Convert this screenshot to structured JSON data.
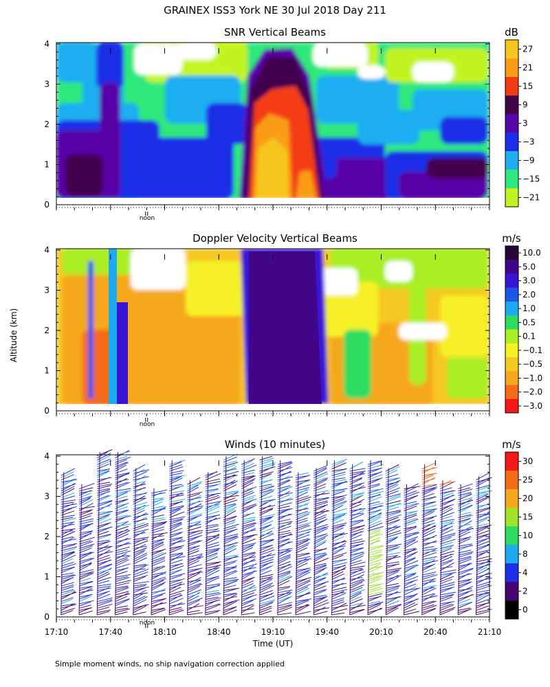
{
  "figure": {
    "title": "GRAINEX ISS3 York NE  30 Jul 2018 Day 211",
    "y_axis_label": "Altitude (km)",
    "x_axis_label": "Time (UT)",
    "footnote": "Simple moment winds, no ship navigation correction applied",
    "noon_label": "noon"
  },
  "chart_data": [
    {
      "type": "heatmap",
      "title": "SNR Vertical Beams",
      "unit": "dB",
      "xlim": [
        "17:10",
        "21:10"
      ],
      "ylim": [
        0,
        4
      ],
      "y_ticks": [
        "0",
        "1",
        "2",
        "3",
        "4"
      ],
      "noon_marker": "18:00",
      "colorbar": {
        "labels": [
          "27",
          "21",
          "15",
          "9",
          "3",
          "−3",
          "−9",
          "−15",
          "−21"
        ],
        "colors": [
          "#f7c61e",
          "#fa9d16",
          "#f43c14",
          "#43064e",
          "#5806a8",
          "#1e2ee8",
          "#1eaef0",
          "#2ee87c",
          "#c2f424"
        ]
      },
      "features": [
        {
          "description": "strong echo core",
          "time_range": [
            "18:58",
            "19:28"
          ],
          "altitude_range_km": [
            0.1,
            2.6
          ],
          "max_db": 27
        }
      ]
    },
    {
      "type": "heatmap",
      "title": "Doppler Velocity Vertical Beams",
      "unit": "m/s",
      "xlim": [
        "17:10",
        "21:10"
      ],
      "ylim": [
        0,
        4
      ],
      "y_ticks": [
        "0",
        "1",
        "2",
        "3",
        "4"
      ],
      "noon_marker": "18:00",
      "colorbar": {
        "labels": [
          "10.0",
          "5.0",
          "3.0",
          "2.0",
          "1.0",
          "0.5",
          "0.1",
          "−0.1",
          "−0.5",
          "−1.0",
          "−2.0",
          "−3.0"
        ],
        "colors": [
          "#2a0636",
          "#42068a",
          "#3a14d6",
          "#1e54ec",
          "#1eaaf0",
          "#2edc60",
          "#aaee26",
          "#f6f026",
          "#f6c822",
          "#f6a81e",
          "#f46a16",
          "#f41818"
        ]
      },
      "features": [
        {
          "description": "strong downward fall-speed band",
          "time_range": [
            "18:58",
            "19:38"
          ],
          "altitude_range_km": [
            0.1,
            4.0
          ],
          "value_m_s": 5.0
        }
      ]
    },
    {
      "type": "scatter",
      "title": "Winds (10 minutes)",
      "unit": "m/s",
      "xlim": [
        "17:10",
        "21:10"
      ],
      "ylim": [
        0,
        4
      ],
      "x_ticks": [
        "17:10",
        "17:40",
        "18:10",
        "18:40",
        "19:10",
        "19:40",
        "20:10",
        "20:40",
        "21:10"
      ],
      "y_ticks": [
        "0",
        "1",
        "2",
        "3",
        "4"
      ],
      "noon_marker": "18:00",
      "colorbar": {
        "labels": [
          "30",
          "25",
          "20",
          "15",
          "10",
          "8",
          "4",
          "2",
          "0"
        ],
        "colors": [
          "#f41818",
          "#f46a16",
          "#f6a81e",
          "#9fe22a",
          "#2edc60",
          "#1eaaf0",
          "#1e2ee8",
          "#4a0670",
          "#000000"
        ]
      },
      "profile_times": [
        "17:16",
        "17:26",
        "17:36",
        "17:46",
        "17:56",
        "18:06",
        "18:16",
        "18:26",
        "18:36",
        "18:46",
        "18:56",
        "19:06",
        "19:16",
        "19:26",
        "19:36",
        "19:46",
        "19:56",
        "20:06",
        "20:16",
        "20:26",
        "20:36",
        "20:46",
        "20:56",
        "21:06"
      ],
      "profile_top_km": [
        3.6,
        3.3,
        4.1,
        4.1,
        3.7,
        3.2,
        3.9,
        3.4,
        3.6,
        4.0,
        3.9,
        4.0,
        3.9,
        3.6,
        3.7,
        3.9,
        3.8,
        3.9,
        3.7,
        3.3,
        3.8,
        3.4,
        3.3,
        3.5
      ],
      "typical_speed_m_s": "4–8"
    }
  ]
}
